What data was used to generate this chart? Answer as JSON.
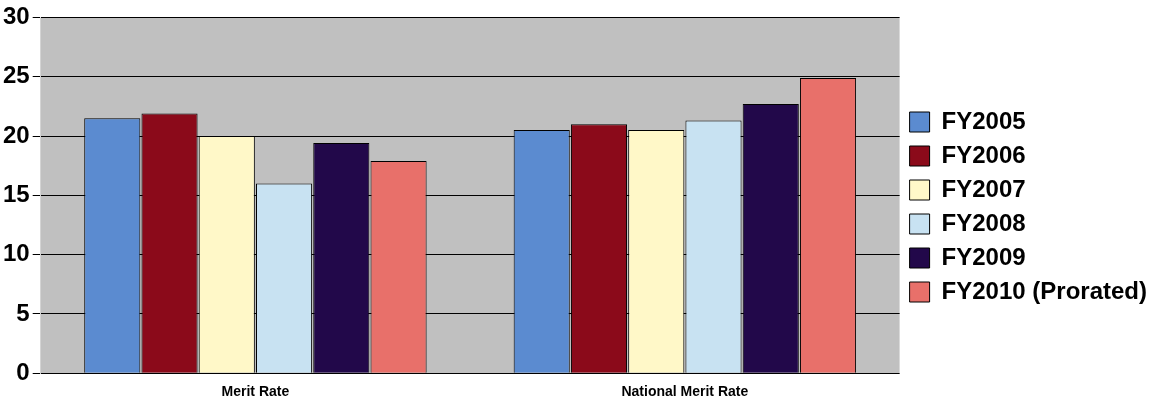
{
  "chart_data": {
    "type": "bar",
    "categories": [
      "Merit Rate",
      "National Merit Rate"
    ],
    "series": [
      {
        "name": "FY2005",
        "color": "#5b8bd0",
        "values": [
          21.5,
          20.5
        ]
      },
      {
        "name": "FY2006",
        "color": "#8b0a1a",
        "values": [
          21.9,
          21
        ]
      },
      {
        "name": "FY2007",
        "color": "#fff8c8",
        "values": [
          20,
          20.5
        ]
      },
      {
        "name": "FY2008",
        "color": "#c8e2f2",
        "values": [
          16,
          21.3
        ]
      },
      {
        "name": "FY2009",
        "color": "#22084a",
        "values": [
          19.4,
          22.7
        ]
      },
      {
        "name": "FY2010 (Prorated)",
        "color": "#e8706a",
        "values": [
          17.9,
          24.9
        ]
      }
    ],
    "ylim": [
      0,
      30
    ],
    "yticks": [
      0,
      5,
      10,
      15,
      20,
      25,
      30
    ],
    "grid": "y",
    "legend": "right"
  }
}
